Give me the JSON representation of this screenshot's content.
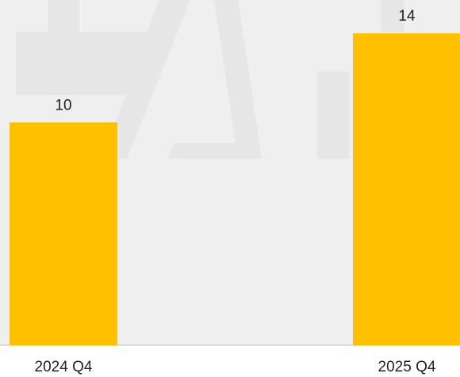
{
  "chart_data": {
    "type": "bar",
    "categories": [
      "2024 Q4",
      "2025 Q4"
    ],
    "values": [
      10,
      14
    ],
    "color": "#ffc000"
  }
}
